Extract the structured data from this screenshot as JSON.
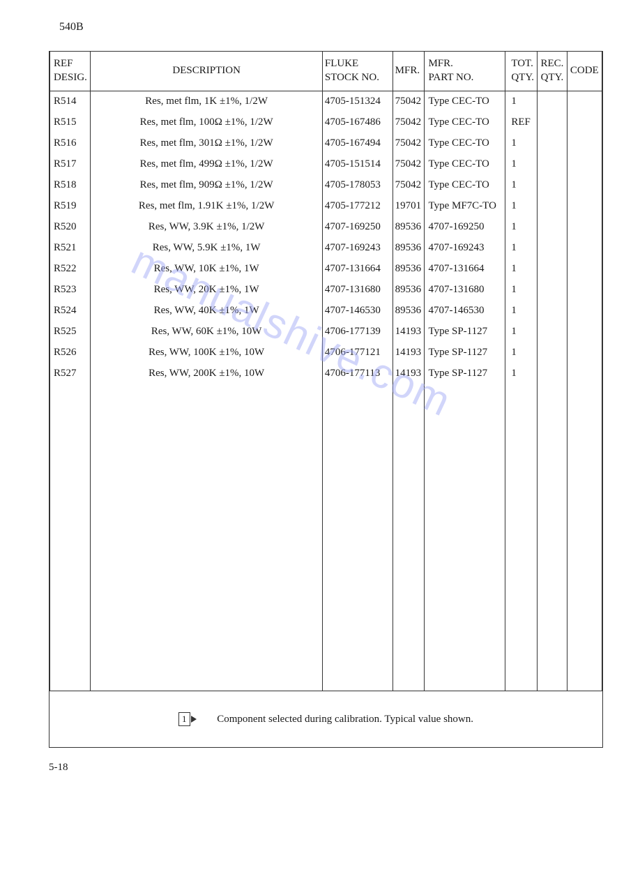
{
  "doc_id": "540B",
  "page_no": "5-18",
  "columns": [
    {
      "key": "ref",
      "label": "REF\nDESIG."
    },
    {
      "key": "desc",
      "label": "DESCRIPTION"
    },
    {
      "key": "stock",
      "label": "FLUKE\nSTOCK NO."
    },
    {
      "key": "mfr",
      "label": "MFR."
    },
    {
      "key": "part",
      "label": "MFR.\nPART NO."
    },
    {
      "key": "tot",
      "label": "TOT.\nQTY."
    },
    {
      "key": "rec",
      "label": "REC.\nQTY."
    },
    {
      "key": "code",
      "label": "CODE"
    }
  ],
  "rows": [
    {
      "ref": "R514",
      "desc": "Res, met flm, 1K ±1%, 1/2W",
      "stock": "4705-151324",
      "mfr": "75042",
      "part": "Type CEC-TO",
      "tot": "1",
      "rec": "",
      "code": ""
    },
    {
      "ref": "R515",
      "desc": "Res, met flm, 100Ω ±1%, 1/2W",
      "stock": "4705-167486",
      "mfr": "75042",
      "part": "Type CEC-TO",
      "tot": "REF",
      "rec": "",
      "code": ""
    },
    {
      "ref": "R516",
      "desc": "Res, met flm, 301Ω ±1%, 1/2W",
      "stock": "4705-167494",
      "mfr": "75042",
      "part": "Type CEC-TO",
      "tot": "1",
      "rec": "",
      "code": ""
    },
    {
      "ref": "R517",
      "desc": "Res, met flm, 499Ω ±1%, 1/2W",
      "stock": "4705-151514",
      "mfr": "75042",
      "part": "Type CEC-TO",
      "tot": "1",
      "rec": "",
      "code": ""
    },
    {
      "ref": "R518",
      "desc": "Res, met flm, 909Ω ±1%, 1/2W",
      "stock": "4705-178053",
      "mfr": "75042",
      "part": "Type CEC-TO",
      "tot": "1",
      "rec": "",
      "code": ""
    },
    {
      "ref": "R519",
      "desc": "Res, met flm, 1.91K ±1%, 1/2W",
      "stock": "4705-177212",
      "mfr": "19701",
      "part": "Type MF7C-TO",
      "tot": "1",
      "rec": "",
      "code": ""
    },
    {
      "ref": "R520",
      "desc": "Res, WW, 3.9K ±1%, 1/2W",
      "stock": "4707-169250",
      "mfr": "89536",
      "part": "4707-169250",
      "tot": "1",
      "rec": "",
      "code": ""
    },
    {
      "ref": "R521",
      "desc": "Res, WW, 5.9K ±1%, 1W",
      "stock": "4707-169243",
      "mfr": "89536",
      "part": "4707-169243",
      "tot": "1",
      "rec": "",
      "code": ""
    },
    {
      "ref": "R522",
      "desc": "Res, WW, 10K ±1%, 1W",
      "stock": "4707-131664",
      "mfr": "89536",
      "part": "4707-131664",
      "tot": "1",
      "rec": "",
      "code": ""
    },
    {
      "ref": "R523",
      "desc": "Res, WW, 20K ±1%, 1W",
      "stock": "4707-131680",
      "mfr": "89536",
      "part": "4707-131680",
      "tot": "1",
      "rec": "",
      "code": ""
    },
    {
      "ref": "R524",
      "desc": "Res, WW, 40K ±1%, 1W",
      "stock": "4707-146530",
      "mfr": "89536",
      "part": "4707-146530",
      "tot": "1",
      "rec": "",
      "code": ""
    },
    {
      "ref": "R525",
      "desc": "Res, WW, 60K ±1%, 10W",
      "stock": "4706-177139",
      "mfr": "14193",
      "part": "Type SP-1127",
      "tot": "1",
      "rec": "",
      "code": ""
    },
    {
      "ref": "R526",
      "desc": "Res, WW, 100K ±1%, 10W",
      "stock": "4706-177121",
      "mfr": "14193",
      "part": "Type SP-1127",
      "tot": "1",
      "rec": "",
      "code": ""
    },
    {
      "ref": "R527",
      "desc": "Res, WW, 200K ±1%, 10W",
      "stock": "4706-177113",
      "mfr": "14193",
      "part": "Type SP-1127",
      "tot": "1",
      "rec": "",
      "code": ""
    }
  ],
  "footnote": {
    "flag": "1",
    "text": "Component selected during calibration.  Typical value shown."
  },
  "watermark_text": "manualshive.com"
}
